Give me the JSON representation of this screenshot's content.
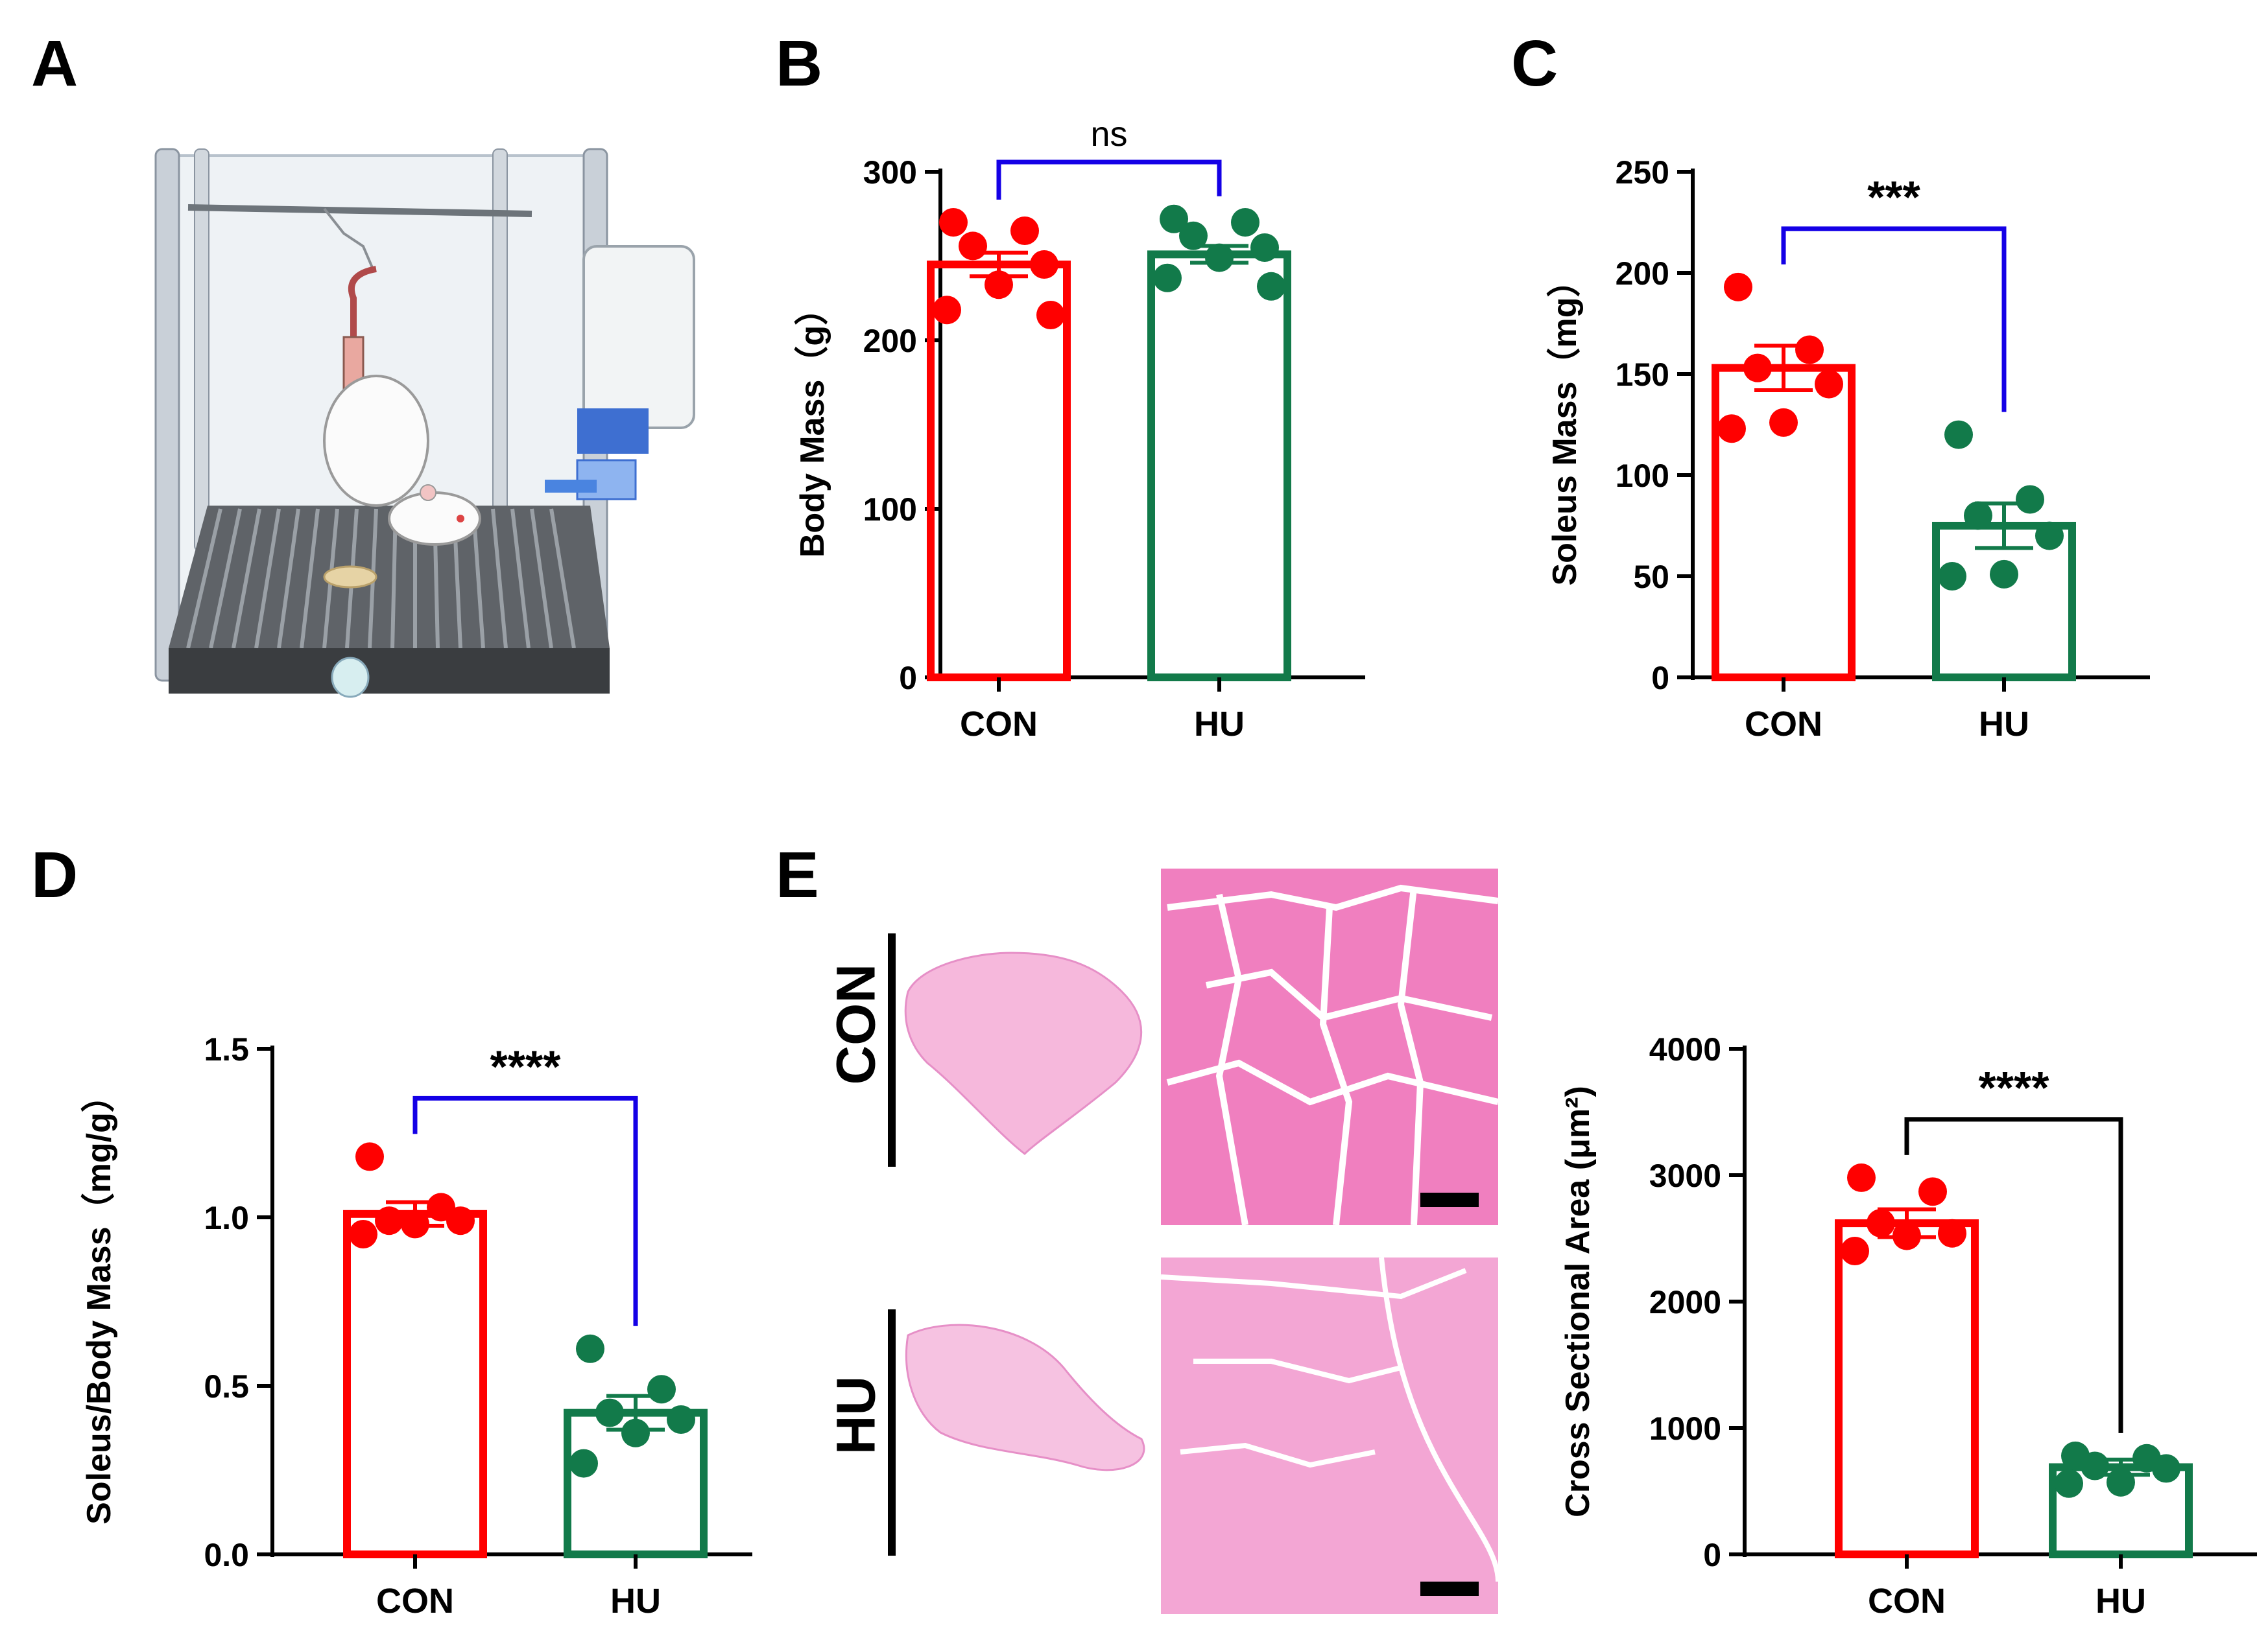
{
  "panels": {
    "A": "A",
    "B": "B",
    "C": "C",
    "D": "D",
    "E": "E"
  },
  "colors": {
    "con": "#ff0000",
    "hu": "#127a4a",
    "bracket_blue": "#1400e6",
    "bracket_black": "#000000",
    "he_pink": "#f07fbf",
    "he_membrane": "#ffffff"
  },
  "histology": {
    "row_labels": [
      "CON",
      "HU"
    ],
    "icons": [
      "soleus-cross-section-icon",
      "he-stain-micrograph-icon",
      "scale-bar-icon"
    ]
  },
  "illustration": {
    "icons": [
      "cage-icon",
      "rat-icon",
      "water-bottle-icon",
      "suspension-bar-icon",
      "tail-harness-icon"
    ]
  },
  "chart_data": [
    {
      "panel": "B",
      "type": "bar",
      "categories": [
        "CON",
        "HU"
      ],
      "values": [
        245,
        251
      ],
      "sem": [
        7,
        5
      ],
      "points": [
        [
          270,
          265,
          256,
          245,
          233,
          218,
          215
        ],
        [
          272,
          270,
          262,
          255,
          249,
          237,
          232
        ]
      ],
      "ylabel": "Body Mass（g）",
      "ylim": [
        0,
        300
      ],
      "yticks": [
        0,
        100,
        200,
        300
      ],
      "significance": "ns",
      "bracket_color": "#1400e6",
      "grid": false
    },
    {
      "panel": "C",
      "type": "bar",
      "categories": [
        "CON",
        "HU"
      ],
      "values": [
        153,
        75
      ],
      "sem": [
        11,
        11
      ],
      "points": [
        [
          193,
          162,
          153,
          145,
          126,
          123
        ],
        [
          120,
          88,
          80,
          70,
          51,
          50
        ]
      ],
      "ylabel": "Soleus Mass（mg）",
      "ylim": [
        0,
        250
      ],
      "yticks": [
        0,
        50,
        100,
        150,
        200,
        250
      ],
      "significance": "***",
      "bracket_color": "#1400e6",
      "grid": false
    },
    {
      "panel": "D",
      "type": "bar",
      "categories": [
        "CON",
        "HU"
      ],
      "values": [
        1.01,
        0.42
      ],
      "sem": [
        0.035,
        0.05
      ],
      "points": [
        [
          1.18,
          1.03,
          0.99,
          0.99,
          0.98,
          0.95
        ],
        [
          0.61,
          0.49,
          0.42,
          0.4,
          0.36,
          0.27
        ]
      ],
      "ylabel": "Soleus/Body Mass（mg/g）",
      "ylim": [
        0,
        1.5
      ],
      "yticks": [
        "0.0",
        "0.5",
        "1.0",
        "1.5"
      ],
      "significance": "****",
      "bracket_color": "#1400e6",
      "grid": false
    },
    {
      "panel": "E",
      "type": "bar",
      "categories": [
        "CON",
        "HU"
      ],
      "values": [
        2620,
        690
      ],
      "sem": [
        110,
        60
      ],
      "points": [
        [
          2980,
          2870,
          2620,
          2540,
          2520,
          2400
        ],
        [
          780,
          760,
          700,
          680,
          570,
          560
        ]
      ],
      "ylabel": "Cross Sectional Area (μm²)",
      "ylim": [
        0,
        4000
      ],
      "yticks": [
        0,
        1000,
        2000,
        3000,
        4000
      ],
      "significance": "****",
      "bracket_color": "#000000",
      "grid": false
    }
  ]
}
